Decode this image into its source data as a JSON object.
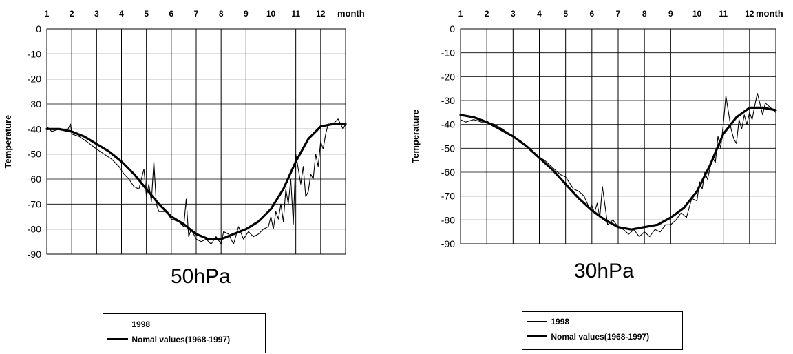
{
  "chart_data": [
    {
      "type": "line",
      "title": "50hPa",
      "xlabel": "month",
      "ylabel": "Temperature",
      "x_ticks": [
        "1",
        "2",
        "3",
        "4",
        "5",
        "6",
        "7",
        "8",
        "9",
        "10",
        "11",
        "12"
      ],
      "y_ticks": [
        "0",
        "-10",
        "-20",
        "-30",
        "-40",
        "-50",
        "-60",
        "-70",
        "-80",
        "-90"
      ],
      "xlim": [
        1,
        13
      ],
      "ylim": [
        -90,
        0
      ],
      "grid": true,
      "legend": "bottom",
      "series": [
        {
          "name": "1998",
          "style": "thin",
          "x": [
            1.0,
            1.2,
            1.5,
            1.8,
            1.95,
            2.0,
            2.3,
            2.6,
            3.0,
            3.3,
            3.6,
            3.9,
            4.1,
            4.3,
            4.5,
            4.7,
            4.8,
            4.9,
            5.0,
            5.1,
            5.2,
            5.3,
            5.4,
            5.5,
            5.8,
            6.0,
            6.3,
            6.5,
            6.6,
            6.7,
            6.8,
            7.0,
            7.2,
            7.4,
            7.6,
            7.8,
            8.0,
            8.1,
            8.3,
            8.5,
            8.7,
            8.9,
            9.1,
            9.3,
            9.5,
            9.7,
            9.9,
            10.0,
            10.1,
            10.2,
            10.3,
            10.4,
            10.5,
            10.6,
            10.7,
            10.8,
            10.9,
            11.0,
            11.1,
            11.2,
            11.3,
            11.4,
            11.5,
            11.6,
            11.7,
            11.8,
            11.9,
            12.0,
            12.1,
            12.2,
            12.3,
            12.5,
            12.7,
            12.9,
            13.0
          ],
          "y": [
            -39,
            -41,
            -40,
            -41,
            -38,
            -42,
            -43,
            -45,
            -48,
            -50,
            -52,
            -55,
            -58,
            -60,
            -63,
            -64,
            -60,
            -56,
            -67,
            -62,
            -69,
            -53,
            -70,
            -73,
            -73,
            -76,
            -77,
            -79,
            -68,
            -83,
            -80,
            -84,
            -85,
            -84,
            -86,
            -83,
            -86,
            -81,
            -82,
            -86,
            -79,
            -84,
            -81,
            -83,
            -82,
            -80,
            -79,
            -75,
            -80,
            -73,
            -76,
            -70,
            -77,
            -64,
            -70,
            -60,
            -78,
            -50,
            -56,
            -62,
            -55,
            -67,
            -65,
            -58,
            -60,
            -50,
            -55,
            -45,
            -48,
            -42,
            -38,
            -38,
            -36,
            -40,
            -38
          ]
        },
        {
          "name": "Nomal values(1968-1997)",
          "style": "thick",
          "x": [
            1.0,
            1.5,
            2.0,
            2.5,
            3.0,
            3.5,
            4.0,
            4.5,
            5.0,
            5.5,
            6.0,
            6.5,
            7.0,
            7.5,
            8.0,
            8.5,
            9.0,
            9.5,
            10.0,
            10.5,
            11.0,
            11.5,
            12.0,
            12.5,
            13.0
          ],
          "y": [
            -40,
            -40,
            -41,
            -43,
            -46,
            -49,
            -53,
            -58,
            -64,
            -70,
            -75,
            -78,
            -82,
            -84,
            -84,
            -82,
            -80,
            -77,
            -72,
            -64,
            -53,
            -44,
            -39,
            -38,
            -38
          ]
        }
      ]
    },
    {
      "type": "line",
      "title": "30hPa",
      "xlabel": "month",
      "ylabel": "Temperature",
      "x_ticks": [
        "1",
        "2",
        "3",
        "4",
        "5",
        "6",
        "7",
        "8",
        "9",
        "10",
        "11",
        "12"
      ],
      "y_ticks": [
        "0",
        "-10",
        "-20",
        "-30",
        "-40",
        "-50",
        "-60",
        "-70",
        "-80",
        "-90"
      ],
      "xlim": [
        1,
        13
      ],
      "ylim": [
        -90,
        0
      ],
      "grid": true,
      "legend": "bottom",
      "series": [
        {
          "name": "1998",
          "style": "thin",
          "x": [
            1.0,
            1.2,
            1.5,
            1.8,
            2.0,
            2.3,
            2.6,
            3.0,
            3.3,
            3.6,
            3.9,
            4.2,
            4.5,
            4.8,
            5.0,
            5.3,
            5.5,
            5.7,
            5.9,
            6.0,
            6.1,
            6.2,
            6.3,
            6.4,
            6.6,
            6.8,
            7.0,
            7.2,
            7.4,
            7.6,
            7.8,
            8.0,
            8.2,
            8.4,
            8.6,
            8.8,
            9.0,
            9.2,
            9.4,
            9.6,
            9.8,
            10.0,
            10.1,
            10.2,
            10.3,
            10.4,
            10.5,
            10.6,
            10.7,
            10.8,
            10.9,
            11.0,
            11.1,
            11.2,
            11.3,
            11.4,
            11.5,
            11.6,
            11.7,
            11.8,
            11.9,
            12.0,
            12.1,
            12.2,
            12.3,
            12.5,
            12.6,
            12.8,
            13.0
          ],
          "y": [
            -38,
            -39,
            -38,
            -39,
            -39,
            -40,
            -42,
            -45,
            -47,
            -50,
            -53,
            -55,
            -58,
            -61,
            -62,
            -67,
            -68,
            -70,
            -75,
            -74,
            -77,
            -73,
            -79,
            -66,
            -82,
            -80,
            -83,
            -84,
            -86,
            -84,
            -87,
            -85,
            -87,
            -84,
            -85,
            -82,
            -82,
            -80,
            -77,
            -79,
            -71,
            -72,
            -64,
            -67,
            -60,
            -63,
            -58,
            -54,
            -56,
            -45,
            -50,
            -40,
            -28,
            -35,
            -42,
            -46,
            -48,
            -38,
            -42,
            -36,
            -40,
            -35,
            -38,
            -32,
            -27,
            -36,
            -31,
            -33,
            -35
          ]
        },
        {
          "name": "Nomal values(1968-1997)",
          "style": "thick",
          "x": [
            1.0,
            1.5,
            2.0,
            2.5,
            3.0,
            3.5,
            4.0,
            4.5,
            5.0,
            5.5,
            6.0,
            6.5,
            7.0,
            7.5,
            8.0,
            8.5,
            9.0,
            9.5,
            10.0,
            10.5,
            11.0,
            11.5,
            12.0,
            12.5,
            13.0
          ],
          "y": [
            -36,
            -37,
            -39,
            -42,
            -45,
            -49,
            -54,
            -59,
            -65,
            -71,
            -76,
            -80,
            -83,
            -84,
            -83,
            -82,
            -79,
            -75,
            -68,
            -57,
            -44,
            -37,
            -33,
            -33,
            -34
          ]
        }
      ]
    }
  ]
}
